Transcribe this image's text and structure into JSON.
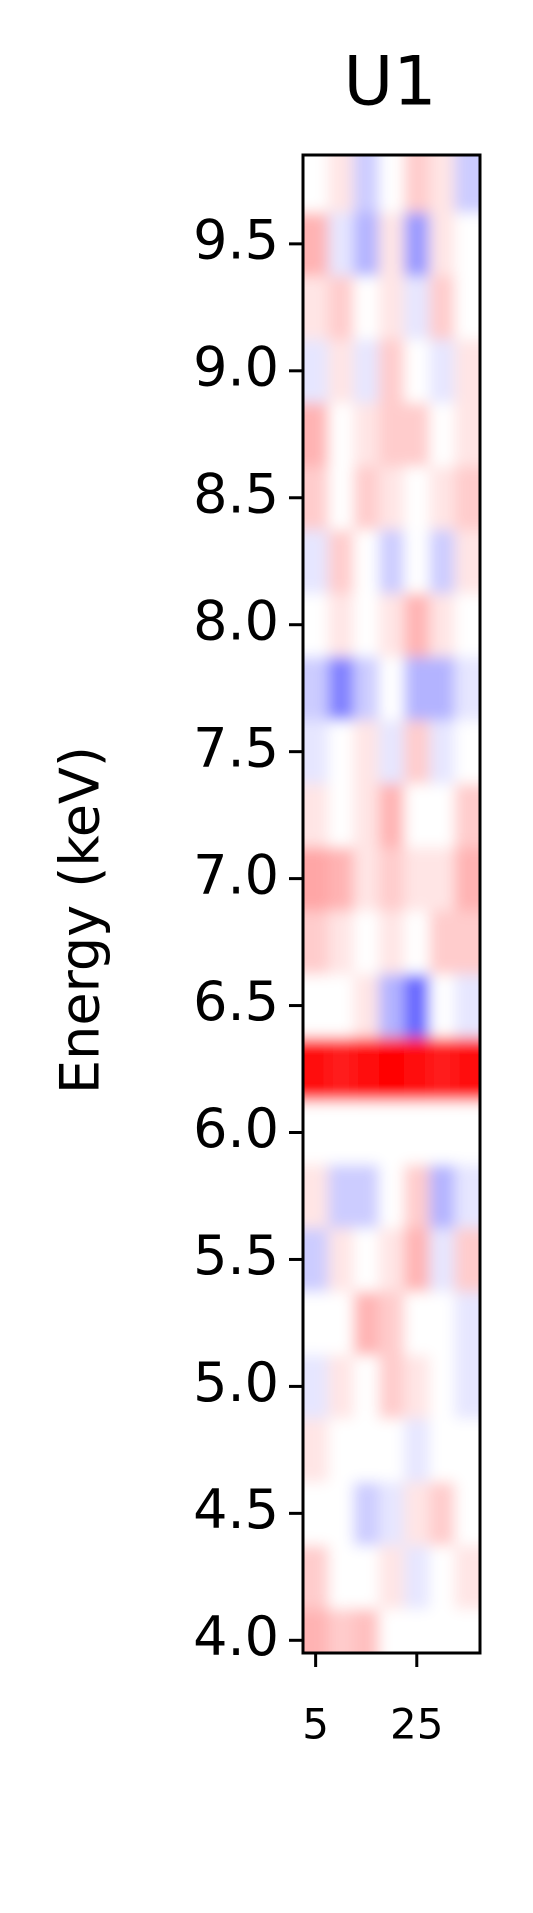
{
  "chart_data": {
    "type": "heatmap",
    "title": "U1",
    "ylabel": "Energy (keV)",
    "colormap": "bwr",
    "zlim": [
      -1,
      1
    ],
    "x": [
      5,
      10,
      15,
      20,
      25,
      30,
      35
    ],
    "y": [
      4.0,
      4.25,
      4.5,
      4.75,
      5.0,
      5.25,
      5.5,
      5.75,
      6.0,
      6.25,
      6.5,
      6.75,
      7.0,
      7.25,
      7.5,
      7.75,
      8.0,
      8.25,
      8.5,
      8.75,
      9.0,
      9.25,
      9.5,
      9.75
    ],
    "z": [
      [
        0.3,
        0.2,
        0.25,
        0,
        0,
        0,
        0
      ],
      [
        0.2,
        0,
        0,
        0.1,
        -0.1,
        0,
        0.1
      ],
      [
        0,
        0,
        -0.2,
        -0.1,
        0.1,
        0.2,
        0
      ],
      [
        0.1,
        0,
        0,
        0,
        -0.1,
        0,
        0
      ],
      [
        -0.1,
        0.1,
        0,
        0.2,
        0.1,
        0,
        -0.1
      ],
      [
        0,
        0,
        0.3,
        0.2,
        0,
        0,
        -0.1
      ],
      [
        -0.2,
        0.1,
        0,
        0.1,
        0.3,
        -0.1,
        0.2
      ],
      [
        0.1,
        -0.2,
        -0.2,
        0,
        0.2,
        -0.3,
        -0.1
      ],
      [
        0,
        0,
        0,
        0,
        0,
        0,
        0
      ],
      [
        0.95,
        0.9,
        0.95,
        1,
        0.95,
        0.9,
        0.95
      ],
      [
        0,
        0,
        0.1,
        -0.3,
        -0.6,
        0,
        -0.1
      ],
      [
        0.2,
        0.1,
        0,
        0.1,
        0,
        0.2,
        0.2
      ],
      [
        0.35,
        0.3,
        0.1,
        0.2,
        0.1,
        0.1,
        0.3
      ],
      [
        0.1,
        0,
        0.1,
        0.3,
        0,
        0,
        0.2
      ],
      [
        -0.1,
        0,
        0.1,
        -0.1,
        0.2,
        -0.1,
        0
      ],
      [
        -0.2,
        -0.5,
        -0.2,
        0,
        -0.3,
        -0.3,
        -0.1
      ],
      [
        0,
        0.1,
        0,
        0.1,
        0.3,
        0.1,
        0
      ],
      [
        -0.1,
        0.2,
        0,
        -0.2,
        0,
        -0.2,
        0.1
      ],
      [
        0.2,
        0,
        0.2,
        0.1,
        0,
        0.1,
        0.2
      ],
      [
        0.3,
        0,
        0.1,
        0.2,
        0.2,
        0,
        0.1
      ],
      [
        -0.1,
        0.1,
        -0.1,
        0.2,
        0,
        -0.1,
        0.1
      ],
      [
        0.1,
        0.2,
        0,
        0.1,
        -0.1,
        0.2,
        0
      ],
      [
        0.3,
        -0.1,
        -0.3,
        0.1,
        -0.4,
        0.1,
        0
      ],
      [
        0,
        0.1,
        -0.2,
        0,
        0.2,
        0.1,
        -0.2
      ]
    ],
    "xlim": [
      2.5,
      37.5
    ],
    "ylim": [
      3.95,
      9.85
    ],
    "xticks": [
      5,
      25
    ],
    "yticks": [
      {
        "value": 4,
        "label": "4.0"
      },
      4.5,
      {
        "value": 5,
        "label": "5.0"
      },
      5.5,
      {
        "value": 6,
        "label": "6.0"
      },
      6.5,
      {
        "value": 7,
        "label": "7.0"
      },
      7.5,
      {
        "value": 8,
        "label": "8.0"
      },
      8.5,
      {
        "value": 9,
        "label": "9.0"
      },
      9.5
    ]
  }
}
